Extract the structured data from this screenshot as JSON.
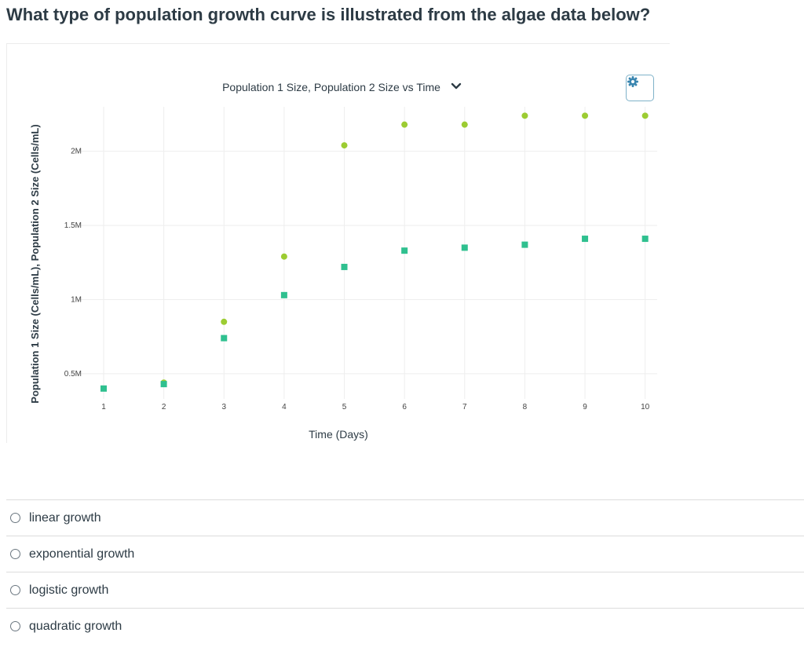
{
  "question": {
    "text": "What type of population growth curve is illustrated from the algae data below?"
  },
  "chart": {
    "settings_icon": "gear-icon",
    "dropdown_icon": "chevron-down-icon"
  },
  "chart_data": {
    "type": "scatter",
    "title": "Population 1 Size, Population 2 Size vs Time",
    "xlabel": "Time (Days)",
    "ylabel": "Population 1 Size (Cells/mL), Population 2 Size (Cells/mL)",
    "xlim": [
      0.7,
      10.2
    ],
    "ylim": [
      330000,
      2300000
    ],
    "x_ticks": [
      1,
      2,
      3,
      4,
      5,
      6,
      7,
      8,
      9,
      10
    ],
    "x_tick_labels": [
      "1",
      "2",
      "3",
      "4",
      "5",
      "6",
      "7",
      "8",
      "9",
      "10"
    ],
    "y_ticks": [
      500000,
      1000000,
      1500000,
      2000000
    ],
    "y_tick_labels": [
      "0.5M",
      "1M",
      "1.5M",
      "2M"
    ],
    "grid": true,
    "legend": "none",
    "series": [
      {
        "marker": "circle",
        "color": "#9ccc32",
        "x": [
          2,
          3,
          4,
          5,
          6,
          7,
          8,
          9,
          10
        ],
        "y": [
          440000,
          850000,
          1290000,
          2040000,
          2180000,
          2180000,
          2240000,
          2240000,
          2240000
        ]
      },
      {
        "marker": "square",
        "color": "#2fc08f",
        "x": [
          1,
          2,
          3,
          4,
          5,
          6,
          7,
          8,
          9,
          10
        ],
        "y": [
          400000,
          430000,
          740000,
          1030000,
          1220000,
          1330000,
          1350000,
          1370000,
          1410000,
          1410000
        ]
      }
    ]
  },
  "answers": [
    {
      "label": "linear growth"
    },
    {
      "label": "exponential growth"
    },
    {
      "label": "logistic growth"
    },
    {
      "label": "quadratic growth"
    }
  ]
}
